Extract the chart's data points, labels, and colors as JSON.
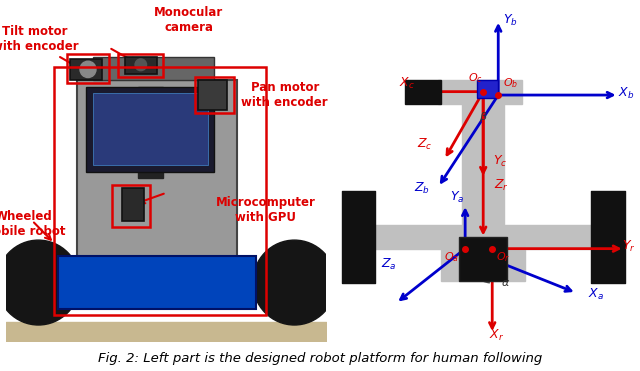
{
  "fig_width": 6.4,
  "fig_height": 3.71,
  "bg_color": "#ffffff",
  "caption": "Fig. 2: Left part is the designed robot platform for human following",
  "caption_fontsize": 9.5,
  "photo_region": [
    0.01,
    0.08,
    0.5,
    0.88
  ],
  "diagram_region": [
    0.52,
    0.04,
    0.47,
    0.92
  ],
  "red": "#dd0000",
  "blue": "#0000cc",
  "gray_light": "#c0c0c0",
  "gray_dark": "#555555",
  "black": "#111111"
}
